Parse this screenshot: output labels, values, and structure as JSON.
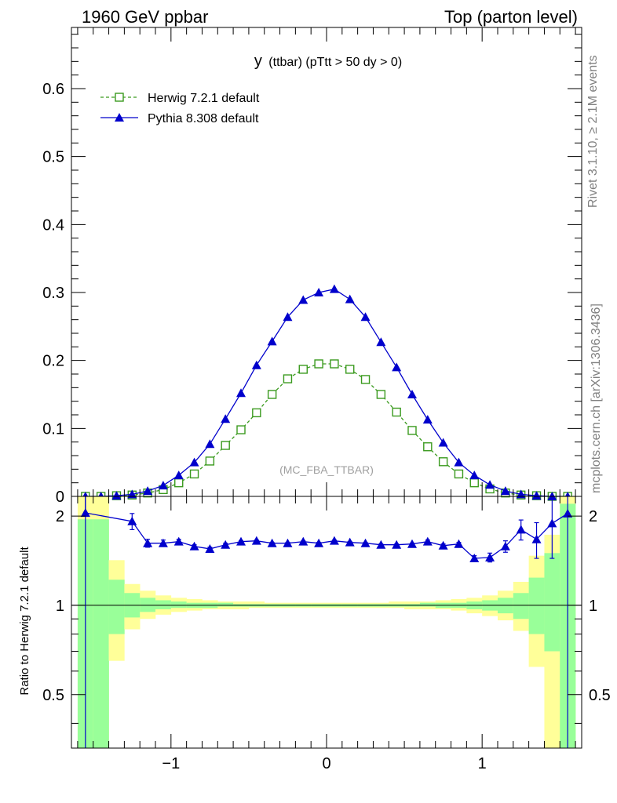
{
  "header": {
    "left": "1960 GeV ppbar",
    "right": "Top (parton level)"
  },
  "side_labels": {
    "rivet": "Rivet 3.1.10, ≥ 2.1M events",
    "mcplots": "mcplots.cern.ch [arXiv:1306.3436]"
  },
  "chart_data": [
    {
      "type": "line",
      "title_main": "y",
      "title_rest": "(ttbar) (pTtt > 50 dy > 0)",
      "watermark": "(MC_FBA_TTBAR)",
      "xlim": [
        -1.64,
        1.64
      ],
      "ylim": [
        0,
        0.69
      ],
      "yticks": [
        0,
        0.1,
        0.2,
        0.3,
        0.4,
        0.5,
        0.6
      ],
      "ytick_labels": [
        "0",
        "0.1",
        "0.2",
        "0.3",
        "0.4",
        "0.5",
        "0.6"
      ],
      "legend_position": "top-left",
      "x": [
        -1.55,
        -1.45,
        -1.35,
        -1.25,
        -1.15,
        -1.05,
        -0.95,
        -0.85,
        -0.75,
        -0.65,
        -0.55,
        -0.45,
        -0.35,
        -0.25,
        -0.15,
        -0.05,
        0.05,
        0.15,
        0.25,
        0.35,
        0.45,
        0.55,
        0.65,
        0.75,
        0.85,
        0.95,
        1.05,
        1.15,
        1.25,
        1.35,
        1.45,
        1.55
      ],
      "series": [
        {
          "name": "Herwig 7.2.1 default",
          "color": "#3a9a1e",
          "marker": "open-square",
          "dashed": true,
          "values": [
            0.0,
            0.0,
            0.001,
            0.002,
            0.005,
            0.01,
            0.02,
            0.033,
            0.052,
            0.075,
            0.098,
            0.123,
            0.15,
            0.173,
            0.187,
            0.195,
            0.195,
            0.187,
            0.172,
            0.15,
            0.124,
            0.097,
            0.073,
            0.051,
            0.033,
            0.02,
            0.011,
            0.005,
            0.002,
            0.001,
            0.0,
            0.0
          ]
        },
        {
          "name": "Pythia 8.308 default",
          "color": "#0000cc",
          "marker": "filled-triangle",
          "dashed": false,
          "values": [
            0.0,
            0.0,
            0.001,
            0.003,
            0.008,
            0.016,
            0.031,
            0.05,
            0.077,
            0.114,
            0.152,
            0.193,
            0.228,
            0.264,
            0.289,
            0.3,
            0.305,
            0.29,
            0.264,
            0.227,
            0.19,
            0.15,
            0.113,
            0.079,
            0.05,
            0.031,
            0.017,
            0.008,
            0.003,
            0.001,
            0.0,
            0.0
          ]
        }
      ]
    },
    {
      "type": "line",
      "ylabel": "Ratio to Herwig 7.2.1 default",
      "xlim": [
        -1.64,
        1.64
      ],
      "ylim": [
        0.33,
        2.33
      ],
      "xticks": [
        -1,
        0,
        1
      ],
      "xtick_labels": [
        "−1",
        "0",
        "1"
      ],
      "yticks": [
        0.5,
        1,
        2
      ],
      "ytick_labels": [
        "0.5",
        "1",
        "2"
      ],
      "bin_edges": [
        -1.6,
        -1.5,
        -1.4,
        -1.3,
        -1.2,
        -1.1,
        -1.0,
        -0.9,
        -0.8,
        -0.7,
        -0.6,
        -0.5,
        -0.4,
        -0.3,
        -0.2,
        -0.1,
        0.0,
        0.1,
        0.2,
        0.3,
        0.4,
        0.5,
        0.6,
        0.7,
        0.8,
        0.9,
        1.0,
        1.1,
        1.2,
        1.3,
        1.4,
        1.5,
        1.6
      ],
      "band_colors": {
        "yellow": "#ffff99",
        "green": "#99ff99"
      },
      "yellow_band_hi": [
        2.4,
        2.4,
        1.42,
        1.18,
        1.12,
        1.08,
        1.06,
        1.05,
        1.04,
        1.03,
        1.03,
        1.03,
        1.02,
        1.02,
        1.02,
        1.02,
        1.02,
        1.02,
        1.02,
        1.02,
        1.03,
        1.03,
        1.03,
        1.04,
        1.05,
        1.06,
        1.08,
        1.12,
        1.2,
        1.47,
        1.73,
        2.4
      ],
      "yellow_band_lo": [
        0.3,
        0.3,
        0.65,
        0.83,
        0.9,
        0.93,
        0.95,
        0.96,
        0.97,
        0.97,
        0.97,
        0.98,
        0.98,
        0.98,
        0.98,
        0.98,
        0.98,
        0.98,
        0.98,
        0.98,
        0.98,
        0.97,
        0.97,
        0.97,
        0.96,
        0.94,
        0.92,
        0.89,
        0.82,
        0.62,
        0.3,
        0.3
      ],
      "green_band_hi": [
        1.95,
        1.95,
        1.22,
        1.1,
        1.06,
        1.04,
        1.03,
        1.02,
        1.02,
        1.02,
        1.01,
        1.01,
        1.01,
        1.01,
        1.01,
        1.01,
        1.01,
        1.01,
        1.01,
        1.01,
        1.01,
        1.01,
        1.02,
        1.02,
        1.02,
        1.03,
        1.04,
        1.06,
        1.1,
        1.24,
        1.5,
        2.2
      ],
      "green_band_lo": [
        0.3,
        0.3,
        0.8,
        0.91,
        0.95,
        0.97,
        0.98,
        0.98,
        0.98,
        0.99,
        0.99,
        0.99,
        0.99,
        0.99,
        0.99,
        0.99,
        0.99,
        0.99,
        0.99,
        0.99,
        0.99,
        0.99,
        0.99,
        0.98,
        0.98,
        0.97,
        0.96,
        0.94,
        0.9,
        0.8,
        0.7,
        0.3
      ],
      "series": [
        {
          "name": "Pythia 8.308 default",
          "color": "#0000cc",
          "x": [
            -1.55,
            -1.25,
            -1.15,
            -1.05,
            -0.95,
            -0.85,
            -0.75,
            -0.65,
            -0.55,
            -0.45,
            -0.35,
            -0.25,
            -0.15,
            -0.05,
            0.05,
            0.15,
            0.25,
            0.35,
            0.45,
            0.55,
            0.65,
            0.75,
            0.85,
            0.95,
            1.05,
            1.15,
            1.25,
            1.35,
            1.45,
            1.55
          ],
          "values": [
            2.05,
            1.92,
            1.62,
            1.62,
            1.64,
            1.58,
            1.55,
            1.6,
            1.64,
            1.65,
            1.62,
            1.62,
            1.64,
            1.62,
            1.65,
            1.63,
            1.62,
            1.6,
            1.6,
            1.61,
            1.64,
            1.59,
            1.61,
            1.44,
            1.45,
            1.58,
            1.8,
            1.67,
            1.89,
            2.04
          ],
          "err": [
            2.0,
            0.12,
            0.05,
            0.04,
            0.03,
            0.02,
            0.02,
            0.02,
            0.01,
            0.01,
            0.01,
            0.01,
            0.01,
            0.01,
            0.01,
            0.01,
            0.01,
            0.01,
            0.01,
            0.01,
            0.02,
            0.02,
            0.02,
            0.03,
            0.05,
            0.07,
            0.14,
            0.23,
            0.45,
            1.9
          ],
          "line_start_y": 2.4
        }
      ],
      "reference_line": 1
    }
  ]
}
